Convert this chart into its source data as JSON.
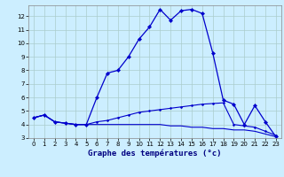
{
  "xlabel": "Graphe des températures (°c)",
  "background_color": "#cceeff",
  "line_color": "#0000cc",
  "xlim": [
    -0.5,
    23.5
  ],
  "ylim": [
    3,
    12.8
  ],
  "yticks": [
    3,
    4,
    5,
    6,
    7,
    8,
    9,
    10,
    11,
    12
  ],
  "xticks": [
    0,
    1,
    2,
    3,
    4,
    5,
    6,
    7,
    8,
    9,
    10,
    11,
    12,
    13,
    14,
    15,
    16,
    17,
    18,
    19,
    20,
    21,
    22,
    23
  ],
  "line1_x": [
    0,
    1,
    2,
    3,
    4,
    5,
    6,
    7,
    8,
    9,
    10,
    11,
    12,
    13,
    14,
    15,
    16,
    17,
    18,
    19,
    20,
    21,
    22,
    23
  ],
  "line1_y": [
    4.5,
    4.7,
    4.2,
    4.1,
    4.0,
    4.0,
    6.0,
    7.8,
    8.0,
    9.0,
    10.3,
    11.2,
    12.5,
    11.7,
    12.4,
    12.5,
    12.2,
    9.3,
    5.8,
    5.5,
    4.0,
    5.4,
    4.2,
    3.1
  ],
  "line2_x": [
    0,
    1,
    2,
    3,
    4,
    5,
    6,
    7,
    8,
    9,
    10,
    11,
    12,
    13,
    14,
    15,
    16,
    17,
    18,
    19,
    20,
    21,
    22,
    23
  ],
  "line2_y": [
    4.5,
    4.7,
    4.2,
    4.1,
    4.0,
    4.0,
    4.2,
    4.3,
    4.5,
    4.7,
    4.9,
    5.0,
    5.1,
    5.2,
    5.3,
    5.4,
    5.5,
    5.55,
    5.6,
    4.0,
    3.9,
    3.8,
    3.5,
    3.2
  ],
  "line3_x": [
    0,
    1,
    2,
    3,
    4,
    5,
    6,
    7,
    8,
    9,
    10,
    11,
    12,
    13,
    14,
    15,
    16,
    17,
    18,
    19,
    20,
    21,
    22,
    23
  ],
  "line3_y": [
    4.5,
    4.7,
    4.2,
    4.1,
    4.0,
    4.0,
    4.0,
    4.0,
    4.0,
    4.0,
    4.0,
    4.0,
    4.0,
    3.9,
    3.9,
    3.8,
    3.8,
    3.7,
    3.7,
    3.6,
    3.6,
    3.5,
    3.3,
    3.1
  ],
  "grid_color": "#aacccc",
  "xlabel_color": "#000080",
  "xlabel_fontsize": 6.5,
  "tick_fontsize": 5.0
}
